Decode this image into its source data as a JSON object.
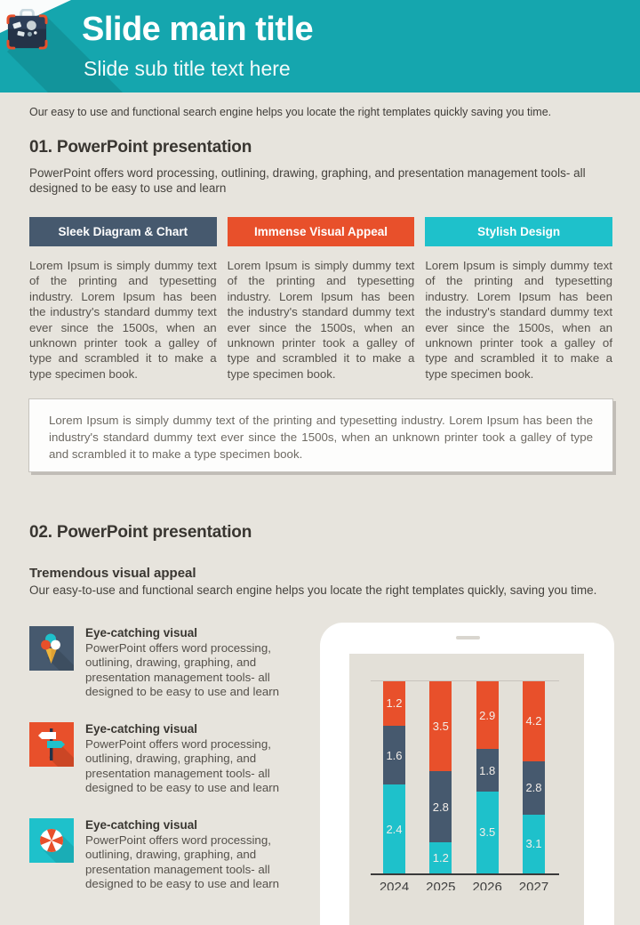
{
  "header": {
    "title": "Slide main title",
    "subtitle": "Slide sub title text here",
    "logo_icon": "suitcase-icon"
  },
  "intro": "Our easy to use and functional search engine  helps you locate the right templates quickly saving you time.",
  "section1": {
    "heading": "01. PowerPoint presentation",
    "lead": "PowerPoint offers word processing, outlining, drawing, graphing, and presentation management tools- all designed to be easy to use and learn",
    "columns": [
      {
        "label": "Sleek Diagram & Chart",
        "color": "#46596E",
        "body": "Lorem Ipsum is simply dummy text of the printing and typesetting industry. Lorem Ipsum has been the industry's standard dummy text ever since the 1500s, when an unknown printer took a galley of type and scrambled it to make a type specimen book."
      },
      {
        "label": "Immense Visual Appeal",
        "color": "#E8502B",
        "body": "Lorem Ipsum is simply dummy text of the printing and typesetting industry. Lorem Ipsum has been the industry's standard dummy text ever since the 1500s, when an unknown printer took a galley of type and scrambled it to make a type specimen book."
      },
      {
        "label": "Stylish Design",
        "color": "#1EC1CB",
        "body": "Lorem Ipsum is simply dummy text of the printing and typesetting industry. Lorem Ipsum has been the industry's standard dummy text ever since the 1500s, when an unknown printer took a galley of type and scrambled it to make a type specimen book."
      }
    ],
    "summary": "Lorem Ipsum is simply dummy text of the printing and typesetting industry. Lorem Ipsum has been the industry's standard dummy text ever since the 1500s, when an unknown printer took a galley of type and scrambled it to make a type specimen book."
  },
  "section2": {
    "heading": "02. PowerPoint presentation",
    "subheading": "Tremendous visual appeal",
    "lead": "Our easy-to-use and functional search engine helps you locate the right templates quickly, saving you time.",
    "features": [
      {
        "icon": "ice-cream-icon",
        "icon_bg": "#46596E",
        "title": "Eye-catching visual",
        "body": "PowerPoint offers word processing, outlining, drawing, graphing, and presentation management tools- all designed to be easy to use and learn"
      },
      {
        "icon": "signpost-icon",
        "icon_bg": "#E8502B",
        "title": "Eye-catching visual",
        "body": "PowerPoint offers word processing, outlining, drawing, graphing, and presentation management tools- all designed to be easy to use and learn"
      },
      {
        "icon": "beachball-icon",
        "icon_bg": "#1EC1CB",
        "title": "Eye-catching visual",
        "body": "PowerPoint offers word processing, outlining, drawing, graphing, and presentation management tools- all designed to be easy to use and learn"
      }
    ]
  },
  "chart_data": {
    "type": "bar",
    "stacked": true,
    "normalized_100_percent": true,
    "categories": [
      "2024",
      "2025",
      "2026",
      "2027"
    ],
    "series": [
      {
        "name": "bottom-teal",
        "color": "#1EC1CB",
        "values": [
          2.4,
          1.2,
          3.5,
          3.1
        ]
      },
      {
        "name": "middle-slate",
        "color": "#46596E",
        "values": [
          1.6,
          2.8,
          1.8,
          2.8
        ]
      },
      {
        "name": "top-orange",
        "color": "#E8502B",
        "values": [
          1.2,
          3.5,
          2.9,
          4.2
        ]
      }
    ],
    "value_labels": true,
    "title": "",
    "xlabel": "",
    "ylabel": "",
    "grid": "single-top-gridline",
    "legend": "none"
  },
  "palette": {
    "header_teal": "#15A6AE",
    "bright_teal": "#1EC1CB",
    "slate": "#46596E",
    "orange": "#E8502B",
    "page_bg": "#E7E4DD",
    "screen_bg": "#E3E0D8"
  }
}
